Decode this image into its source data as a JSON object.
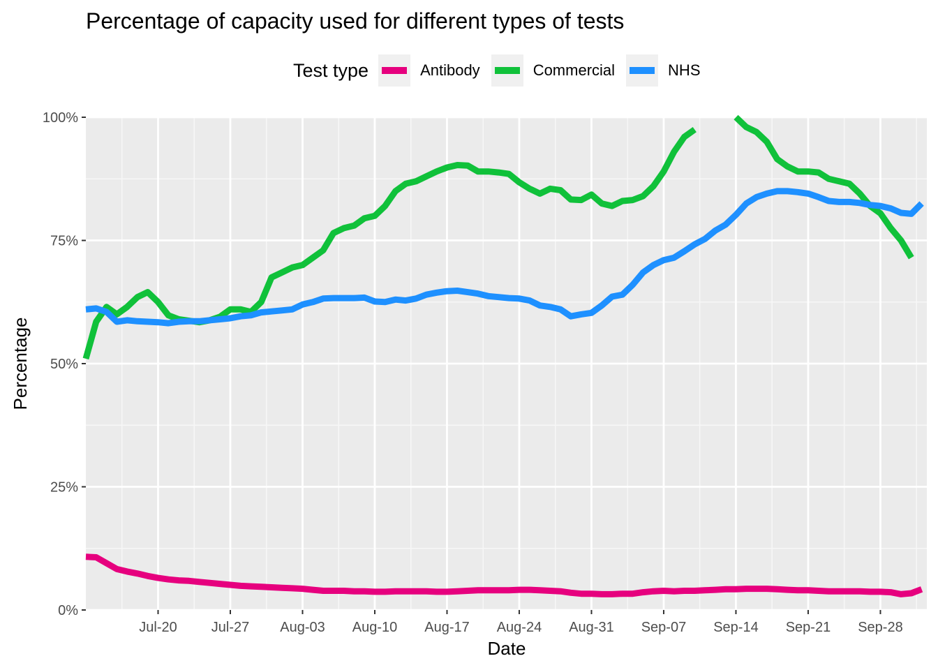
{
  "chart_data": {
    "type": "line",
    "title": "Percentage of capacity used for different types of tests",
    "xlabel": "Date",
    "ylabel": "Percentage",
    "x_start": "Jul-13",
    "x_end": "Oct-01",
    "ylim": [
      0,
      100
    ],
    "yticks": [
      {
        "value": 0,
        "label": "0%"
      },
      {
        "value": 25,
        "label": "25%"
      },
      {
        "value": 50,
        "label": "50%"
      },
      {
        "value": 75,
        "label": "75%"
      },
      {
        "value": 100,
        "label": "100%"
      }
    ],
    "xticks": [
      {
        "value": 7,
        "label": "Jul-20"
      },
      {
        "value": 14,
        "label": "Jul-27"
      },
      {
        "value": 21,
        "label": "Aug-03"
      },
      {
        "value": 28,
        "label": "Aug-10"
      },
      {
        "value": 35,
        "label": "Aug-17"
      },
      {
        "value": 42,
        "label": "Aug-24"
      },
      {
        "value": 49,
        "label": "Aug-31"
      },
      {
        "value": 56,
        "label": "Sep-07"
      },
      {
        "value": 63,
        "label": "Sep-14"
      },
      {
        "value": 70,
        "label": "Sep-21"
      },
      {
        "value": 77,
        "label": "Sep-28"
      }
    ],
    "grid": true,
    "legend": {
      "title": "Test type",
      "position": "top"
    },
    "series": [
      {
        "name": "Antibody",
        "color": "#e6007e",
        "points": [
          [
            0,
            10.8
          ],
          [
            1,
            10.7
          ],
          [
            2,
            9.5
          ],
          [
            3,
            8.3
          ],
          [
            4,
            7.8
          ],
          [
            5,
            7.4
          ],
          [
            6,
            6.9
          ],
          [
            7,
            6.5
          ],
          [
            8,
            6.2
          ],
          [
            9,
            6.0
          ],
          [
            10,
            5.9
          ],
          [
            11,
            5.7
          ],
          [
            12,
            5.5
          ],
          [
            13,
            5.3
          ],
          [
            14,
            5.1
          ],
          [
            15,
            4.9
          ],
          [
            16,
            4.8
          ],
          [
            17,
            4.7
          ],
          [
            18,
            4.6
          ],
          [
            19,
            4.5
          ],
          [
            20,
            4.4
          ],
          [
            21,
            4.3
          ],
          [
            22,
            4.1
          ],
          [
            23,
            3.9
          ],
          [
            24,
            3.9
          ],
          [
            25,
            3.9
          ],
          [
            26,
            3.8
          ],
          [
            27,
            3.8
          ],
          [
            28,
            3.7
          ],
          [
            29,
            3.7
          ],
          [
            30,
            3.8
          ],
          [
            31,
            3.8
          ],
          [
            32,
            3.8
          ],
          [
            33,
            3.8
          ],
          [
            34,
            3.7
          ],
          [
            35,
            3.7
          ],
          [
            36,
            3.8
          ],
          [
            37,
            3.9
          ],
          [
            38,
            4.0
          ],
          [
            39,
            4.0
          ],
          [
            40,
            4.0
          ],
          [
            41,
            4.0
          ],
          [
            42,
            4.1
          ],
          [
            43,
            4.1
          ],
          [
            44,
            4.0
          ],
          [
            45,
            3.9
          ],
          [
            46,
            3.8
          ],
          [
            47,
            3.5
          ],
          [
            48,
            3.3
          ],
          [
            49,
            3.3
          ],
          [
            50,
            3.2
          ],
          [
            51,
            3.2
          ],
          [
            52,
            3.3
          ],
          [
            53,
            3.3
          ],
          [
            54,
            3.6
          ],
          [
            55,
            3.8
          ],
          [
            56,
            3.9
          ],
          [
            57,
            3.8
          ],
          [
            58,
            3.9
          ],
          [
            59,
            3.9
          ],
          [
            60,
            4.0
          ],
          [
            61,
            4.1
          ],
          [
            62,
            4.2
          ],
          [
            63,
            4.2
          ],
          [
            64,
            4.3
          ],
          [
            65,
            4.3
          ],
          [
            66,
            4.3
          ],
          [
            67,
            4.2
          ],
          [
            68,
            4.1
          ],
          [
            69,
            4.0
          ],
          [
            70,
            4.0
          ],
          [
            71,
            3.9
          ],
          [
            72,
            3.8
          ],
          [
            73,
            3.8
          ],
          [
            74,
            3.8
          ],
          [
            75,
            3.8
          ],
          [
            76,
            3.7
          ],
          [
            77,
            3.7
          ],
          [
            78,
            3.6
          ],
          [
            79,
            3.2
          ],
          [
            80,
            3.4
          ],
          [
            81,
            4.2
          ]
        ]
      },
      {
        "name": "Commercial",
        "color": "#10c13a",
        "points": [
          [
            0,
            51.0
          ],
          [
            1,
            58.5
          ],
          [
            2,
            61.5
          ],
          [
            3,
            60.0
          ],
          [
            4,
            61.5
          ],
          [
            5,
            63.5
          ],
          [
            6,
            64.5
          ],
          [
            7,
            62.5
          ],
          [
            8,
            59.8
          ],
          [
            9,
            59.0
          ],
          [
            10,
            58.7
          ],
          [
            11,
            58.4
          ],
          [
            12,
            58.8
          ],
          [
            13,
            59.5
          ],
          [
            14,
            61.0
          ],
          [
            15,
            61.0
          ],
          [
            16,
            60.5
          ],
          [
            17,
            62.5
          ],
          [
            18,
            67.5
          ],
          [
            19,
            68.5
          ],
          [
            20,
            69.5
          ],
          [
            21,
            70.0
          ],
          [
            22,
            71.5
          ],
          [
            23,
            73.0
          ],
          [
            24,
            76.5
          ],
          [
            25,
            77.5
          ],
          [
            26,
            78.0
          ],
          [
            27,
            79.5
          ],
          [
            28,
            80.0
          ],
          [
            29,
            82.0
          ],
          [
            30,
            85.0
          ],
          [
            31,
            86.5
          ],
          [
            32,
            87.0
          ],
          [
            33,
            88.0
          ],
          [
            34,
            89.0
          ],
          [
            35,
            89.8
          ],
          [
            36,
            90.3
          ],
          [
            37,
            90.2
          ],
          [
            38,
            89.0
          ],
          [
            39,
            89.0
          ],
          [
            40,
            88.8
          ],
          [
            41,
            88.5
          ],
          [
            42,
            86.8
          ],
          [
            43,
            85.5
          ],
          [
            44,
            84.5
          ],
          [
            45,
            85.5
          ],
          [
            46,
            85.2
          ],
          [
            47,
            83.3
          ],
          [
            48,
            83.2
          ],
          [
            49,
            84.3
          ],
          [
            50,
            82.5
          ],
          [
            51,
            82.0
          ],
          [
            52,
            83.0
          ],
          [
            53,
            83.2
          ],
          [
            54,
            84.0
          ],
          [
            55,
            86.0
          ],
          [
            56,
            89.0
          ],
          [
            57,
            93.0
          ],
          [
            58,
            96.0
          ],
          [
            59,
            97.5
          ],
          [
            null,
            null
          ],
          [
            63,
            100.0
          ],
          [
            64,
            98.0
          ],
          [
            65,
            97.0
          ],
          [
            66,
            95.0
          ],
          [
            67,
            91.5
          ],
          [
            68,
            90.0
          ],
          [
            69,
            89.0
          ],
          [
            70,
            89.0
          ],
          [
            71,
            88.8
          ],
          [
            72,
            87.5
          ],
          [
            73,
            87.0
          ],
          [
            74,
            86.5
          ],
          [
            75,
            84.5
          ],
          [
            76,
            82.0
          ],
          [
            77,
            80.5
          ],
          [
            78,
            77.5
          ],
          [
            79,
            75.0
          ],
          [
            80,
            71.5
          ]
        ]
      },
      {
        "name": "NHS",
        "color": "#1e90ff",
        "points": [
          [
            0,
            61.0
          ],
          [
            1,
            61.2
          ],
          [
            2,
            60.5
          ],
          [
            3,
            58.5
          ],
          [
            4,
            58.8
          ],
          [
            5,
            58.6
          ],
          [
            6,
            58.5
          ],
          [
            7,
            58.4
          ],
          [
            8,
            58.2
          ],
          [
            9,
            58.5
          ],
          [
            10,
            58.6
          ],
          [
            11,
            58.6
          ],
          [
            12,
            58.8
          ],
          [
            13,
            59.0
          ],
          [
            14,
            59.2
          ],
          [
            15,
            59.6
          ],
          [
            16,
            59.8
          ],
          [
            17,
            60.4
          ],
          [
            18,
            60.6
          ],
          [
            19,
            60.8
          ],
          [
            20,
            61.0
          ],
          [
            21,
            62.0
          ],
          [
            22,
            62.5
          ],
          [
            23,
            63.2
          ],
          [
            24,
            63.3
          ],
          [
            25,
            63.3
          ],
          [
            26,
            63.3
          ],
          [
            27,
            63.4
          ],
          [
            28,
            62.6
          ],
          [
            29,
            62.5
          ],
          [
            30,
            63.0
          ],
          [
            31,
            62.8
          ],
          [
            32,
            63.2
          ],
          [
            33,
            64.0
          ],
          [
            34,
            64.4
          ],
          [
            35,
            64.7
          ],
          [
            36,
            64.8
          ],
          [
            37,
            64.5
          ],
          [
            38,
            64.2
          ],
          [
            39,
            63.7
          ],
          [
            40,
            63.5
          ],
          [
            41,
            63.3
          ],
          [
            42,
            63.2
          ],
          [
            43,
            62.8
          ],
          [
            44,
            61.8
          ],
          [
            45,
            61.5
          ],
          [
            46,
            61.0
          ],
          [
            47,
            59.6
          ],
          [
            48,
            60.0
          ],
          [
            49,
            60.3
          ],
          [
            50,
            61.8
          ],
          [
            51,
            63.6
          ],
          [
            52,
            64.0
          ],
          [
            53,
            66.0
          ],
          [
            54,
            68.5
          ],
          [
            55,
            70.0
          ],
          [
            56,
            71.0
          ],
          [
            57,
            71.5
          ],
          [
            58,
            72.8
          ],
          [
            59,
            74.2
          ],
          [
            60,
            75.3
          ],
          [
            61,
            77.0
          ],
          [
            62,
            78.2
          ],
          [
            63,
            80.2
          ],
          [
            64,
            82.5
          ],
          [
            65,
            83.8
          ],
          [
            66,
            84.5
          ],
          [
            67,
            85.0
          ],
          [
            68,
            85.0
          ],
          [
            69,
            84.8
          ],
          [
            70,
            84.5
          ],
          [
            71,
            83.8
          ],
          [
            72,
            83.0
          ],
          [
            73,
            82.8
          ],
          [
            74,
            82.8
          ],
          [
            75,
            82.6
          ],
          [
            76,
            82.2
          ],
          [
            77,
            82.0
          ],
          [
            78,
            81.5
          ],
          [
            79,
            80.6
          ],
          [
            80,
            80.4
          ],
          [
            81,
            82.5
          ]
        ]
      }
    ]
  }
}
